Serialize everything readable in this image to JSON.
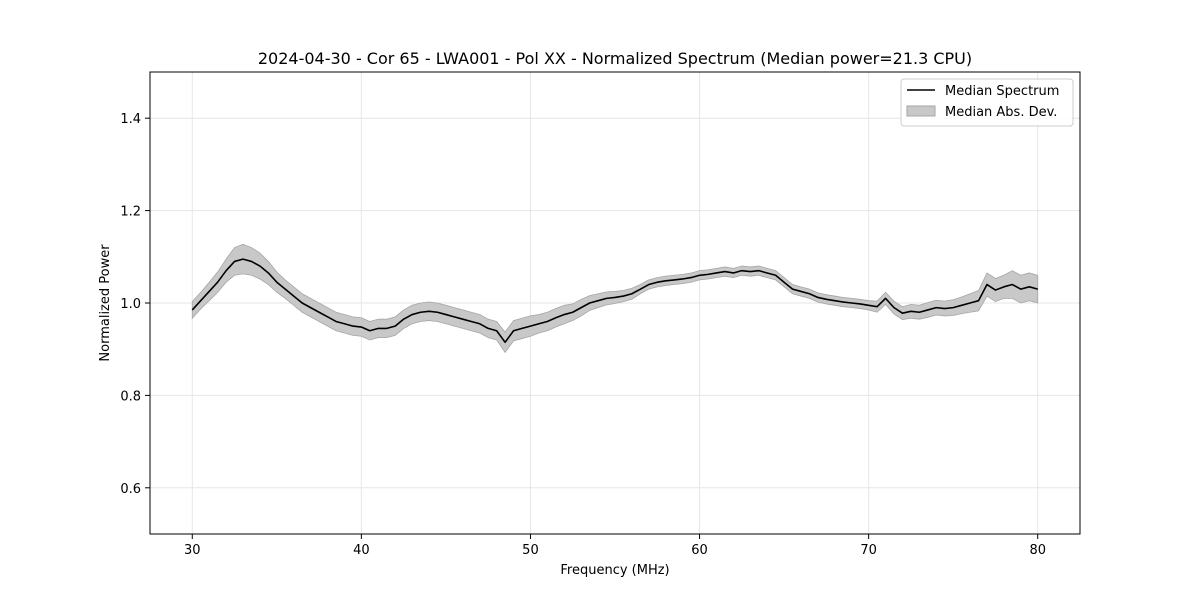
{
  "chart_data": {
    "type": "line",
    "title": "2024-04-30 - Cor 65 - LWA001 - Pol XX - Normalized Spectrum (Median power=21.3 CPU)",
    "xlabel": "Frequency (MHz)",
    "ylabel": "Normalized Power",
    "xlim": [
      27.5,
      82.5
    ],
    "ylim": [
      0.5,
      1.5
    ],
    "xticks": [
      30,
      40,
      50,
      60,
      70,
      80
    ],
    "yticks": [
      0.6,
      0.8,
      1.0,
      1.2,
      1.4
    ],
    "xtick_labels": [
      "30",
      "40",
      "50",
      "60",
      "70",
      "80"
    ],
    "ytick_labels": [
      "0.6",
      "0.8",
      "1.0",
      "1.2",
      "1.4"
    ],
    "grid": true,
    "legend_position": "top-right",
    "colors": {
      "line": "#000000",
      "band": "#c8c8c8",
      "band_edge": "#a6a6a6",
      "grid": "#e6e6e6"
    },
    "series": [
      {
        "name": "Median Spectrum",
        "style": "line",
        "x": [
          30,
          30.5,
          31,
          31.5,
          32,
          32.5,
          33,
          33.5,
          34,
          34.5,
          35,
          35.5,
          36,
          36.5,
          37,
          37.5,
          38,
          38.5,
          39,
          39.5,
          40,
          40.5,
          41,
          41.5,
          42,
          42.5,
          43,
          43.5,
          44,
          44.5,
          45,
          45.5,
          46,
          46.5,
          47,
          47.5,
          48,
          48.5,
          49,
          49.5,
          50,
          50.5,
          51,
          51.5,
          52,
          52.5,
          53,
          53.5,
          54,
          54.5,
          55,
          55.5,
          56,
          56.5,
          57,
          57.5,
          58,
          58.5,
          59,
          59.5,
          60,
          60.5,
          61,
          61.5,
          62,
          62.5,
          63,
          63.5,
          64,
          64.5,
          65,
          65.5,
          66,
          66.5,
          67,
          67.5,
          68,
          68.5,
          69,
          69.5,
          70,
          70.5,
          71,
          71.5,
          72,
          72.5,
          73,
          73.5,
          74,
          74.5,
          75,
          75.5,
          76,
          76.5,
          77,
          77.5,
          78,
          78.5,
          79,
          79.5,
          80
        ],
        "y": [
          0.985,
          1.005,
          1.025,
          1.045,
          1.07,
          1.09,
          1.095,
          1.09,
          1.08,
          1.065,
          1.045,
          1.03,
          1.015,
          1.0,
          0.99,
          0.98,
          0.97,
          0.96,
          0.955,
          0.95,
          0.948,
          0.94,
          0.945,
          0.945,
          0.95,
          0.965,
          0.975,
          0.98,
          0.982,
          0.98,
          0.975,
          0.97,
          0.965,
          0.96,
          0.955,
          0.945,
          0.94,
          0.915,
          0.94,
          0.945,
          0.95,
          0.955,
          0.96,
          0.968,
          0.975,
          0.98,
          0.99,
          1.0,
          1.005,
          1.01,
          1.012,
          1.015,
          1.02,
          1.03,
          1.04,
          1.045,
          1.048,
          1.05,
          1.052,
          1.055,
          1.06,
          1.062,
          1.065,
          1.068,
          1.065,
          1.07,
          1.068,
          1.07,
          1.065,
          1.06,
          1.045,
          1.03,
          1.025,
          1.02,
          1.012,
          1.008,
          1.005,
          1.002,
          1.0,
          0.998,
          0.995,
          0.992,
          1.01,
          0.99,
          0.978,
          0.982,
          0.98,
          0.985,
          0.99,
          0.988,
          0.99,
          0.995,
          1.0,
          1.005,
          1.04,
          1.028,
          1.035,
          1.04,
          1.03,
          1.035,
          1.03
        ]
      },
      {
        "name": "Median Abs. Dev.",
        "style": "band",
        "half_width": [
          0.018,
          0.018,
          0.02,
          0.022,
          0.025,
          0.03,
          0.032,
          0.03,
          0.028,
          0.025,
          0.022,
          0.02,
          0.02,
          0.02,
          0.02,
          0.02,
          0.02,
          0.02,
          0.02,
          0.02,
          0.02,
          0.02,
          0.02,
          0.02,
          0.02,
          0.02,
          0.02,
          0.02,
          0.02,
          0.02,
          0.02,
          0.02,
          0.02,
          0.02,
          0.02,
          0.02,
          0.02,
          0.022,
          0.022,
          0.022,
          0.022,
          0.02,
          0.02,
          0.02,
          0.02,
          0.018,
          0.018,
          0.016,
          0.015,
          0.014,
          0.013,
          0.012,
          0.012,
          0.01,
          0.01,
          0.01,
          0.01,
          0.01,
          0.01,
          0.01,
          0.01,
          0.01,
          0.01,
          0.01,
          0.01,
          0.01,
          0.01,
          0.01,
          0.01,
          0.01,
          0.01,
          0.01,
          0.01,
          0.01,
          0.01,
          0.01,
          0.01,
          0.01,
          0.01,
          0.01,
          0.01,
          0.012,
          0.013,
          0.014,
          0.014,
          0.015,
          0.015,
          0.016,
          0.016,
          0.016,
          0.017,
          0.018,
          0.02,
          0.022,
          0.025,
          0.025,
          0.025,
          0.03,
          0.03,
          0.03,
          0.03
        ]
      }
    ]
  }
}
